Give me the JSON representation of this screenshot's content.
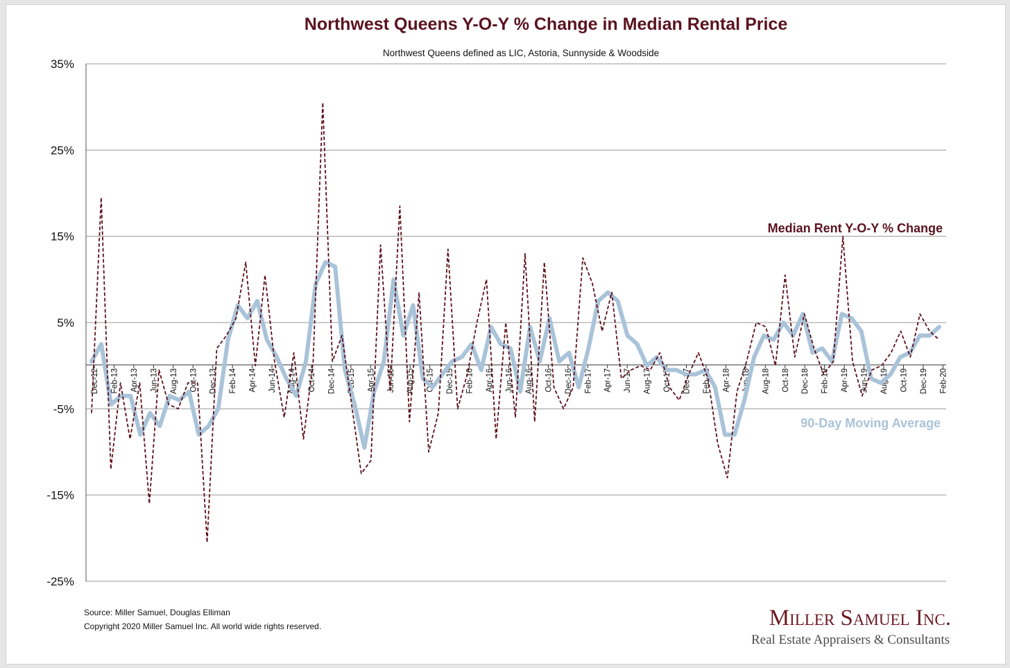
{
  "colors": {
    "raw": "#5c0f1b",
    "avg": "#a9c3d9",
    "title": "#5a1320",
    "grid": "#9a9a9a",
    "brand_name": "#6b1a24",
    "brand_tag": "#4a4a4a"
  },
  "chart_data": {
    "type": "line",
    "title": "Northwest Queens Y-O-Y % Change in Median Rental Price",
    "subtitle": "Northwest Queens defined as LIC, Astoria, Sunnyside & Woodside",
    "xlabel": "",
    "ylabel": "",
    "ylim": [
      -25,
      35
    ],
    "yticks": [
      35,
      25,
      15,
      5,
      -5,
      -15,
      -25
    ],
    "ytick_labels": [
      "35%",
      "25%",
      "15%",
      "5%",
      "-5%",
      "-15%",
      "-25%"
    ],
    "grid": true,
    "xtick_labels": [
      "Dec-12",
      "Feb-13",
      "Apr-13",
      "Jun-13",
      "Aug-13",
      "Oct-13",
      "Dec-13",
      "Feb-14",
      "Apr-14",
      "Jun-14",
      "Aug-14",
      "Oct-14",
      "Dec-14",
      "Feb-15",
      "Apr-15",
      "Jun-15",
      "Aug-15",
      "Oct-15",
      "Dec-15",
      "Feb-16",
      "Apr-16",
      "Jun-16",
      "Aug-16",
      "Oct-16",
      "Dec-16",
      "Feb-17",
      "Apr-17",
      "Jun-17",
      "Aug-17",
      "Oct-17",
      "Dec-17",
      "Feb-18",
      "Apr-18",
      "Jun-18",
      "Aug-18",
      "Oct-18",
      "Dec-18",
      "Feb-19",
      "Apr-19",
      "Jun-19",
      "Aug-19",
      "Oct-19",
      "Dec-19",
      "Feb-20"
    ],
    "x_start": "Dec-12",
    "x_end": "Mar-20",
    "series": [
      {
        "name": "Median Rent Y-O-Y % Change",
        "style": "dashed",
        "values": [
          -5.5,
          19.5,
          -12.0,
          -2.0,
          -8.5,
          -2.0,
          -16.0,
          -0.5,
          -4.5,
          -5.0,
          -2.0,
          -2.0,
          -20.5,
          2.0,
          3.5,
          5.5,
          12.0,
          0.0,
          10.5,
          0.5,
          -6.0,
          1.5,
          -8.5,
          0.5,
          30.5,
          0.5,
          3.5,
          -4.5,
          -12.5,
          -11.0,
          14.0,
          -3.0,
          18.5,
          -6.5,
          8.5,
          -10.0,
          -5.5,
          13.5,
          -5.0,
          -1.0,
          5.0,
          10.0,
          -8.5,
          5.0,
          -6.0,
          13.0,
          -6.5,
          12.0,
          -2.5,
          -5.0,
          -2.5,
          12.5,
          9.5,
          4.0,
          8.5,
          -1.5,
          -0.5,
          0.0,
          -0.5,
          1.5,
          -2.5,
          -4.0,
          -1.0,
          1.5,
          -1.5,
          -9.0,
          -13.0,
          -3.0,
          0.5,
          5.0,
          4.5,
          0.0,
          10.5,
          1.0,
          6.0,
          2.0,
          -1.0,
          0.5,
          15.0,
          0.5,
          -3.5,
          -0.5,
          0.0,
          1.5,
          4.0,
          1.0,
          6.0,
          4.0,
          3.0
        ]
      },
      {
        "name": "90-Day Moving Average",
        "style": "solid",
        "values": [
          0.5,
          2.5,
          -4.5,
          -3.5,
          -3.5,
          -8.0,
          -5.5,
          -7.0,
          -3.5,
          -4.0,
          -3.0,
          -8.0,
          -7.0,
          -5.0,
          3.0,
          7.0,
          5.5,
          7.5,
          3.0,
          1.0,
          -1.5,
          -3.5,
          0.5,
          9.5,
          12.0,
          11.5,
          -0.5,
          -4.5,
          -9.5,
          -3.0,
          0.5,
          10.0,
          3.5,
          7.0,
          -1.5,
          -2.5,
          -1.0,
          0.5,
          1.0,
          2.5,
          -0.5,
          4.5,
          2.5,
          2.0,
          -3.0,
          4.5,
          0.5,
          5.5,
          0.5,
          1.5,
          -2.5,
          2.0,
          7.5,
          8.5,
          7.5,
          3.5,
          2.5,
          0.0,
          1.0,
          -0.5,
          -0.5,
          -1.0,
          -1.0,
          -0.5,
          -2.5,
          -8.0,
          -8.0,
          -4.0,
          1.0,
          3.5,
          3.0,
          5.0,
          3.5,
          6.0,
          1.5,
          2.0,
          0.5,
          6.0,
          5.5,
          4.0,
          -1.5,
          -2.0,
          -1.0,
          1.0,
          1.5,
          3.5,
          3.5,
          4.5
        ]
      }
    ],
    "legend": "inline labels at right",
    "annotations": [
      "Median Rent Y-O-Y % Change",
      "90-Day Moving Average"
    ]
  },
  "footer": {
    "source": "Source: Miller Samuel, Douglas Elliman",
    "copyright": "Copyright 2020 Miller Samuel Inc.  All world wide rights reserved.",
    "brand_name": "Miller Samuel Inc.",
    "brand_tagline": "Real Estate Appraisers & Consultants"
  }
}
